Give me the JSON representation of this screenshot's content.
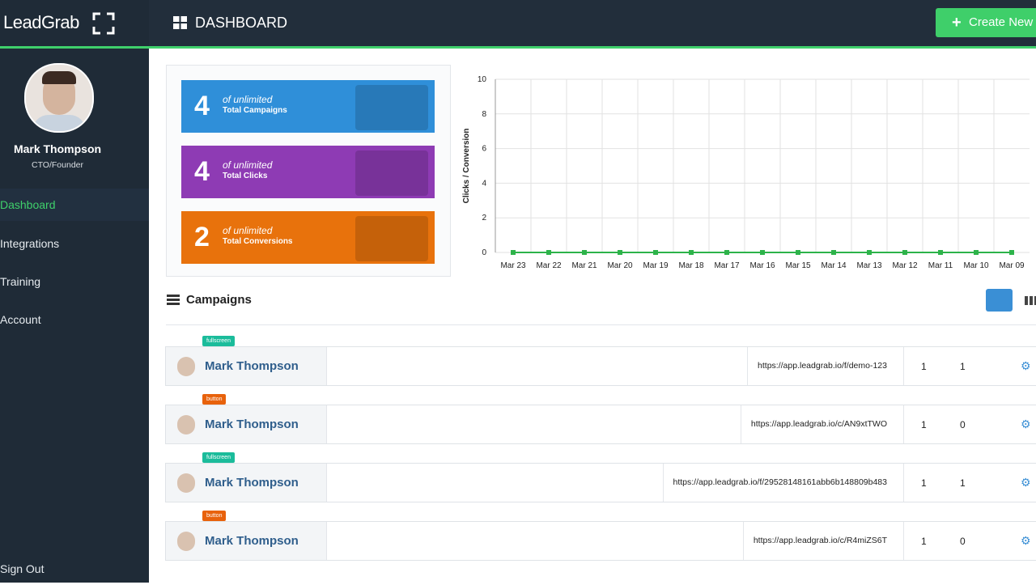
{
  "sidebar": {
    "brand": "LeadGrab",
    "user": {
      "name": "Mark Thompson",
      "role": "CTO/Founder"
    },
    "nav": [
      "Dashboard",
      "Integrations",
      "Training",
      "Account"
    ],
    "sign_out": "Sign Out"
  },
  "header": {
    "title": "DASHBOARD",
    "button": "Create New"
  },
  "stats": [
    {
      "value": 4,
      "qualifier": "of unlimited",
      "label": "Total Campaigns",
      "color": "#2f8fd9"
    },
    {
      "value": 4,
      "qualifier": "of unlimited",
      "label": "Total Clicks",
      "color": "#8e3bb4"
    },
    {
      "value": 2,
      "qualifier": "of unlimited",
      "label": "Total Conversions",
      "color": "#e8720c"
    }
  ],
  "chart_data": {
    "type": "line",
    "ylabel": "Clicks / Conversion",
    "categories": [
      "Mar 23",
      "Mar 22",
      "Mar 21",
      "Mar 20",
      "Mar 19",
      "Mar 18",
      "Mar 17",
      "Mar 16",
      "Mar 15",
      "Mar 14",
      "Mar 13",
      "Mar 12",
      "Mar 11",
      "Mar 10",
      "Mar 09"
    ],
    "series": [
      {
        "color": "#2db34a",
        "values": [
          0,
          0,
          0,
          0,
          0,
          0,
          0,
          0,
          0,
          0,
          0,
          0,
          0,
          0,
          0
        ]
      }
    ],
    "ylim": [
      0,
      10
    ],
    "yticks": [
      0,
      2,
      4,
      6,
      8,
      10
    ],
    "grid": true
  },
  "campaigns": {
    "title": "Campaigns",
    "rows": [
      {
        "tag": "fullscreen",
        "name": "Mark Thompson",
        "url": "https://app.leadgrab.io/f/demo-123",
        "clicks": 1,
        "conversions": 1
      },
      {
        "tag": "button",
        "name": "Mark Thompson",
        "url": "https://app.leadgrab.io/c/AN9xtTWO",
        "clicks": 1,
        "conversions": 0
      },
      {
        "tag": "fullscreen",
        "name": "Mark Thompson",
        "url": "https://app.leadgrab.io/f/29528148161abb6b148809b483",
        "clicks": 1,
        "conversions": 1
      },
      {
        "tag": "button",
        "name": "Mark Thompson",
        "url": "https://app.leadgrab.io/c/R4miZS6T",
        "clicks": 1,
        "conversions": 0
      }
    ]
  }
}
